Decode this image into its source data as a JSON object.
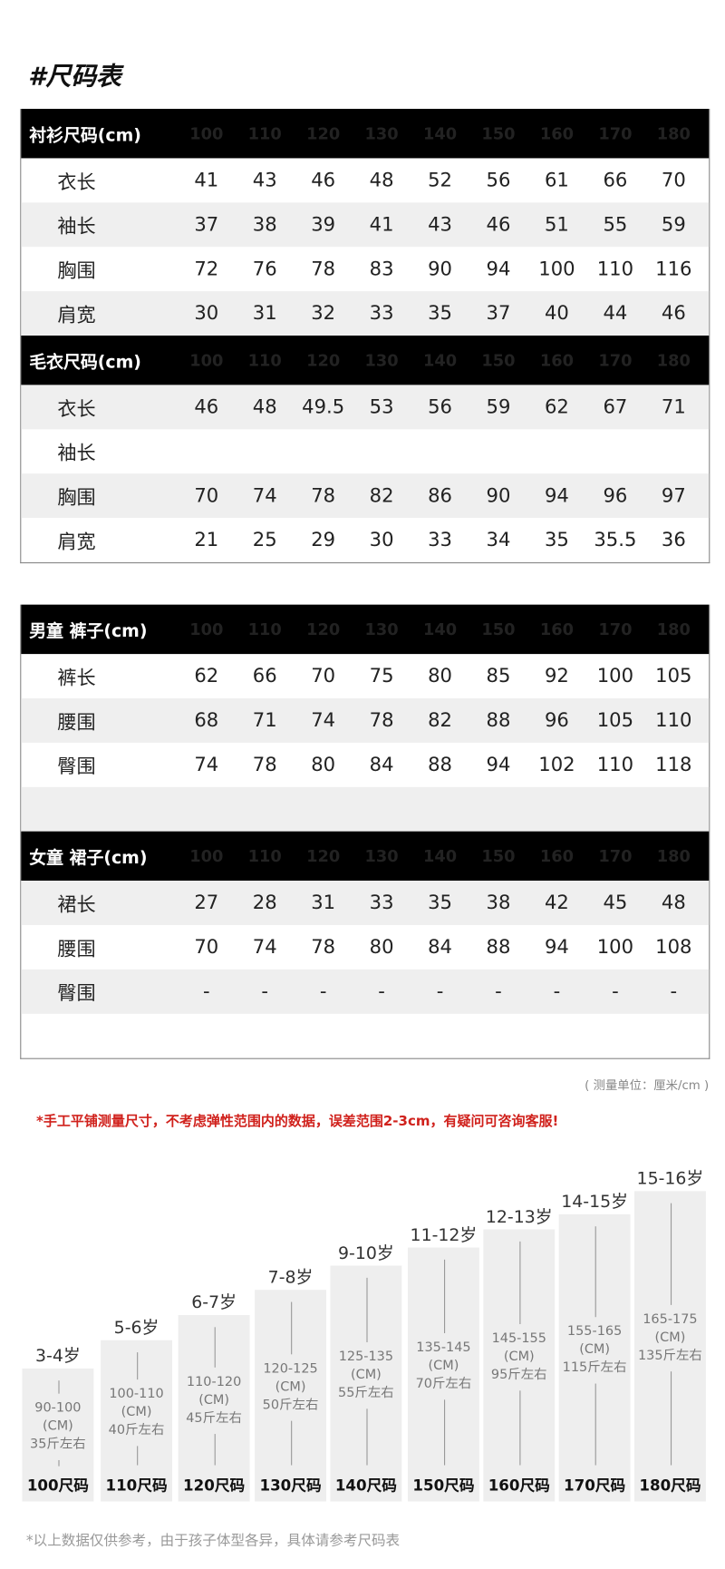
{
  "title": "#尺码表",
  "sizes": [
    "100",
    "110",
    "120",
    "130",
    "140",
    "150",
    "160",
    "170",
    "180"
  ],
  "tables": [
    {
      "header": "衬衫尺码(cm)",
      "top": 0,
      "rows": [
        {
          "label": "衣长",
          "values": [
            "41",
            "43",
            "46",
            "48",
            "52",
            "56",
            "61",
            "66",
            "70"
          ]
        },
        {
          "label": "袖长",
          "values": [
            "37",
            "38",
            "39",
            "41",
            "43",
            "46",
            "51",
            "55",
            "59"
          ]
        },
        {
          "label": "胸围",
          "values": [
            "72",
            "76",
            "78",
            "83",
            "90",
            "94",
            "100",
            "110",
            "116"
          ]
        },
        {
          "label": "肩宽",
          "values": [
            "30",
            "31",
            "32",
            "33",
            "35",
            "37",
            "40",
            "44",
            "46"
          ]
        }
      ]
    },
    {
      "header": "毛衣尺码(cm)",
      "rows": [
        {
          "label": "衣长",
          "values": [
            "46",
            "48",
            "49.5",
            "53",
            "56",
            "59",
            "62",
            "67",
            "71"
          ]
        },
        {
          "label": "袖长",
          "values": [
            "",
            "",
            "",
            "",
            "",
            "",
            "",
            "",
            ""
          ]
        },
        {
          "label": "胸围",
          "values": [
            "70",
            "74",
            "78",
            "82",
            "86",
            "90",
            "94",
            "96",
            "97"
          ]
        },
        {
          "label": "肩宽",
          "values": [
            "21",
            "25",
            "29",
            "30",
            "33",
            "34",
            "35",
            "35.5",
            "36"
          ]
        }
      ]
    },
    {
      "header": "男童 裤子(cm)",
      "rows": [
        {
          "label": "裤长",
          "values": [
            "62",
            "66",
            "70",
            "75",
            "80",
            "85",
            "92",
            "100",
            "105"
          ]
        },
        {
          "label": "腰围",
          "values": [
            "68",
            "71",
            "74",
            "78",
            "82",
            "88",
            "96",
            "105",
            "110"
          ]
        },
        {
          "label": "臀围",
          "values": [
            "74",
            "78",
            "80",
            "84",
            "88",
            "94",
            "102",
            "110",
            "118"
          ]
        },
        {
          "label": "",
          "values": [
            "",
            "",
            "",
            "",
            "",
            "",
            "",
            "",
            ""
          ]
        }
      ]
    },
    {
      "header": "女童 裙子(cm)",
      "rows": [
        {
          "label": "裙长",
          "values": [
            "27",
            "28",
            "31",
            "33",
            "35",
            "38",
            "42",
            "45",
            "48"
          ]
        },
        {
          "label": "腰围",
          "values": [
            "70",
            "74",
            "78",
            "80",
            "84",
            "88",
            "94",
            "100",
            "108"
          ]
        },
        {
          "label": "臀围",
          "values": [
            "-",
            "-",
            "-",
            "-",
            "-",
            "-",
            "-",
            "-",
            "-"
          ]
        },
        {
          "label": "",
          "values": [
            "",
            "",
            "",
            "",
            "",
            "",
            "",
            "",
            ""
          ]
        }
      ]
    }
  ],
  "unit_note": "( 测量单位：厘米/cm )",
  "red_note": "*手工平铺测量尺寸，不考虑弹性范围内的数据，误差范围2-3cm，有疑问可咨询客服!",
  "age_chart": [
    {
      "age": "3-4岁",
      "height": "90-100",
      "unit": "(CM)",
      "weight": "35斤左右",
      "size": "100尺码"
    },
    {
      "age": "5-6岁",
      "height": "100-110",
      "unit": "(CM)",
      "weight": "40斤左右",
      "size": "110尺码"
    },
    {
      "age": "6-7岁",
      "height": "110-120",
      "unit": "(CM)",
      "weight": "45斤左右",
      "size": "120尺码"
    },
    {
      "age": "7-8岁",
      "height": "120-125",
      "unit": "(CM)",
      "weight": "50斤左右",
      "size": "130尺码"
    },
    {
      "age": "9-10岁",
      "height": "125-135",
      "unit": "(CM)",
      "weight": "55斤左右",
      "size": "140尺码"
    },
    {
      "age": "11-12岁",
      "height": "135-145",
      "unit": "(CM)",
      "weight": "70斤左右",
      "size": "150尺码"
    },
    {
      "age": "12-13岁",
      "height": "145-155",
      "unit": "(CM)",
      "weight": "95斤左右",
      "size": "160尺码"
    },
    {
      "age": "14-15岁",
      "height": "155-165",
      "unit": "(CM)",
      "weight": "115斤左右",
      "size": "170尺码"
    },
    {
      "age": "15-16岁",
      "height": "165-175",
      "unit": "(CM)",
      "weight": "135斤左右",
      "size": "180尺码"
    }
  ],
  "footnote": "*以上数据仅供参考，由于孩子体型各异，具体请参考尺码表"
}
